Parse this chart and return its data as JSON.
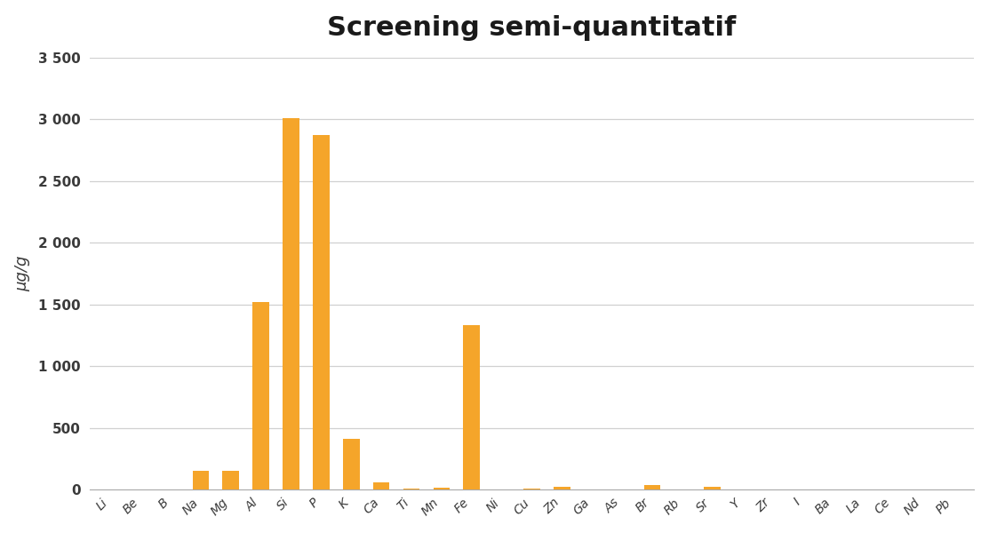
{
  "title": "Screening semi-quantitatif",
  "ylabel": "µg/g",
  "categories": [
    "Li",
    "Be",
    "B",
    "Na",
    "Mg",
    "Al",
    "Si",
    "P",
    "K",
    "Ca",
    "Ti",
    "Mn",
    "Fe",
    "Ni",
    "Cu",
    "Zn",
    "Ga",
    "As",
    "Br",
    "Rb",
    "Sr",
    "Y",
    "Zr",
    "I",
    "Ba",
    "La",
    "Ce",
    "Nd",
    "Pb"
  ],
  "values": [
    0,
    0,
    0,
    150,
    155,
    1520,
    3010,
    2870,
    410,
    60,
    5,
    15,
    1330,
    0,
    10,
    20,
    0,
    0,
    35,
    0,
    20,
    0,
    0,
    0,
    0,
    0,
    0,
    0,
    0
  ],
  "bar_color": "#F5A52A",
  "ylim": [
    0,
    3500
  ],
  "yticks": [
    0,
    500,
    1000,
    1500,
    2000,
    2500,
    3000,
    3500
  ],
  "ytick_labels": [
    "0",
    "500",
    "1 000",
    "1 500",
    "2 000",
    "2 500",
    "3 000",
    "3 500"
  ],
  "title_fontsize": 22,
  "ylabel_fontsize": 13,
  "tick_fontsize": 11,
  "xtick_fontsize": 10,
  "background_color": "#ffffff",
  "grid_color": "#d0d0d0",
  "figsize": [
    11.13,
    6.0
  ],
  "dpi": 100
}
